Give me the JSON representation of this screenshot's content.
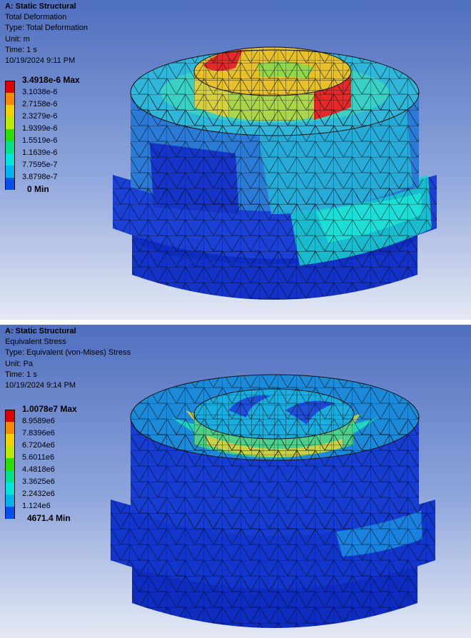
{
  "panels": [
    {
      "id": "total-deformation",
      "header": {
        "analysis": "A: Static Structural",
        "result": "Total Deformation",
        "type": "Type: Total Deformation",
        "unit": "Unit: m",
        "time": "Time: 1 s",
        "timestamp": "10/19/2024 9:11 PM"
      },
      "legend": {
        "colors": [
          "#e00000",
          "#f58a00",
          "#f0d200",
          "#bde800",
          "#28e000",
          "#00e28a",
          "#00e6dc",
          "#00b4f0",
          "#0050f0"
        ],
        "labels": [
          "3.4918e-6 Max",
          "3.1038e-6",
          "2.7158e-6",
          "2.3279e-6",
          "1.9399e-6",
          "1.5519e-6",
          "1.1639e-6",
          "7.7595e-7",
          "3.8798e-7"
        ],
        "min_label": "0 Min"
      }
    },
    {
      "id": "equivalent-stress",
      "header": {
        "analysis": "A: Static Structural",
        "result": "Equivalent Stress",
        "type": "Type: Equivalent (von-Mises) Stress",
        "unit": "Unit: Pa",
        "time": "Time: 1 s",
        "timestamp": "10/19/2024 9:14 PM"
      },
      "legend": {
        "colors": [
          "#e00000",
          "#f58a00",
          "#f0d200",
          "#bde800",
          "#28e000",
          "#00e28a",
          "#00e6dc",
          "#00b4f0",
          "#0050f0"
        ],
        "labels": [
          "1.0078e7 Max",
          "8.9589e6",
          "7.8396e6",
          "6.7204e6",
          "5.6011e6",
          "4.4818e6",
          "3.3625e6",
          "2.2432e6",
          "1.124e6"
        ],
        "min_label": "4671.4 Min"
      }
    }
  ]
}
